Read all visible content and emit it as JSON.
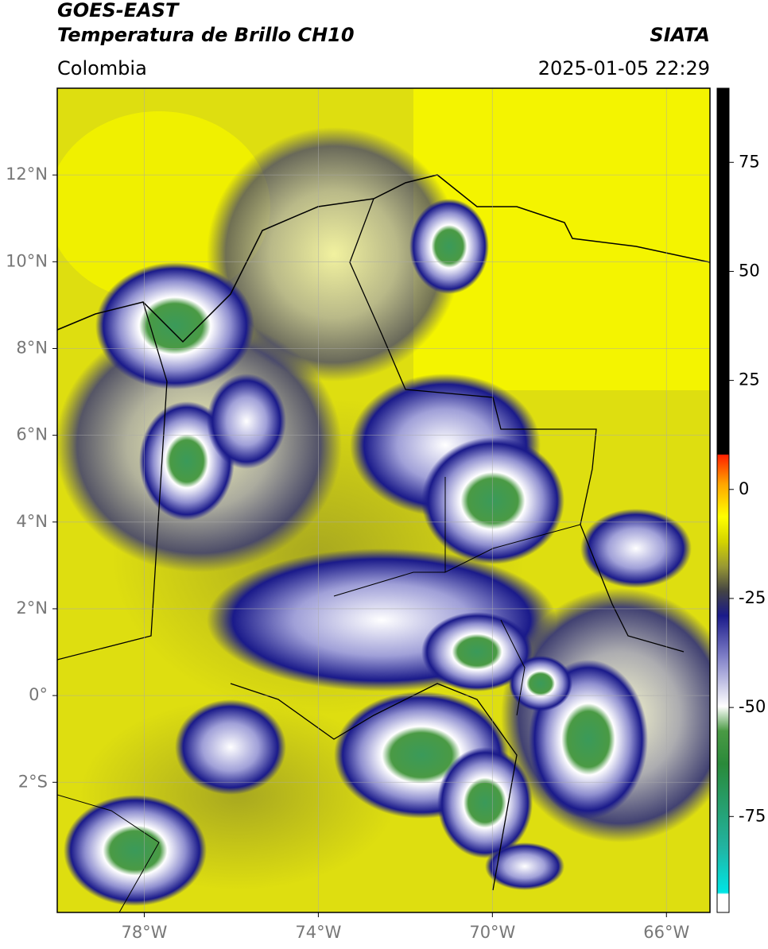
{
  "header": {
    "title": "GOES-EAST",
    "subtitle": "Temperatura de Brillo CH10",
    "source": "SIATA",
    "region": "Colombia",
    "timestamp": "2025-01-05 22:29"
  },
  "map": {
    "xlim": [
      -80,
      -65
    ],
    "ylim": [
      -5,
      14
    ],
    "xticks": [
      {
        "value": -78,
        "label": "78°W"
      },
      {
        "value": -74,
        "label": "74°W"
      },
      {
        "value": -70,
        "label": "70°W"
      },
      {
        "value": -66,
        "label": "66°W"
      }
    ],
    "yticks": [
      {
        "value": -2,
        "label": "2°S"
      },
      {
        "value": 0,
        "label": "0°"
      },
      {
        "value": 2,
        "label": "2°N"
      },
      {
        "value": 4,
        "label": "4°N"
      },
      {
        "value": 6,
        "label": "6°N"
      },
      {
        "value": 8,
        "label": "8°N"
      },
      {
        "value": 10,
        "label": "10°N"
      },
      {
        "value": 12,
        "label": "12°N"
      }
    ],
    "grid": true
  },
  "colorbar": {
    "lim": [
      -97,
      92
    ],
    "ticks": [
      75,
      50,
      25,
      0,
      -25,
      -50,
      -75
    ]
  }
}
